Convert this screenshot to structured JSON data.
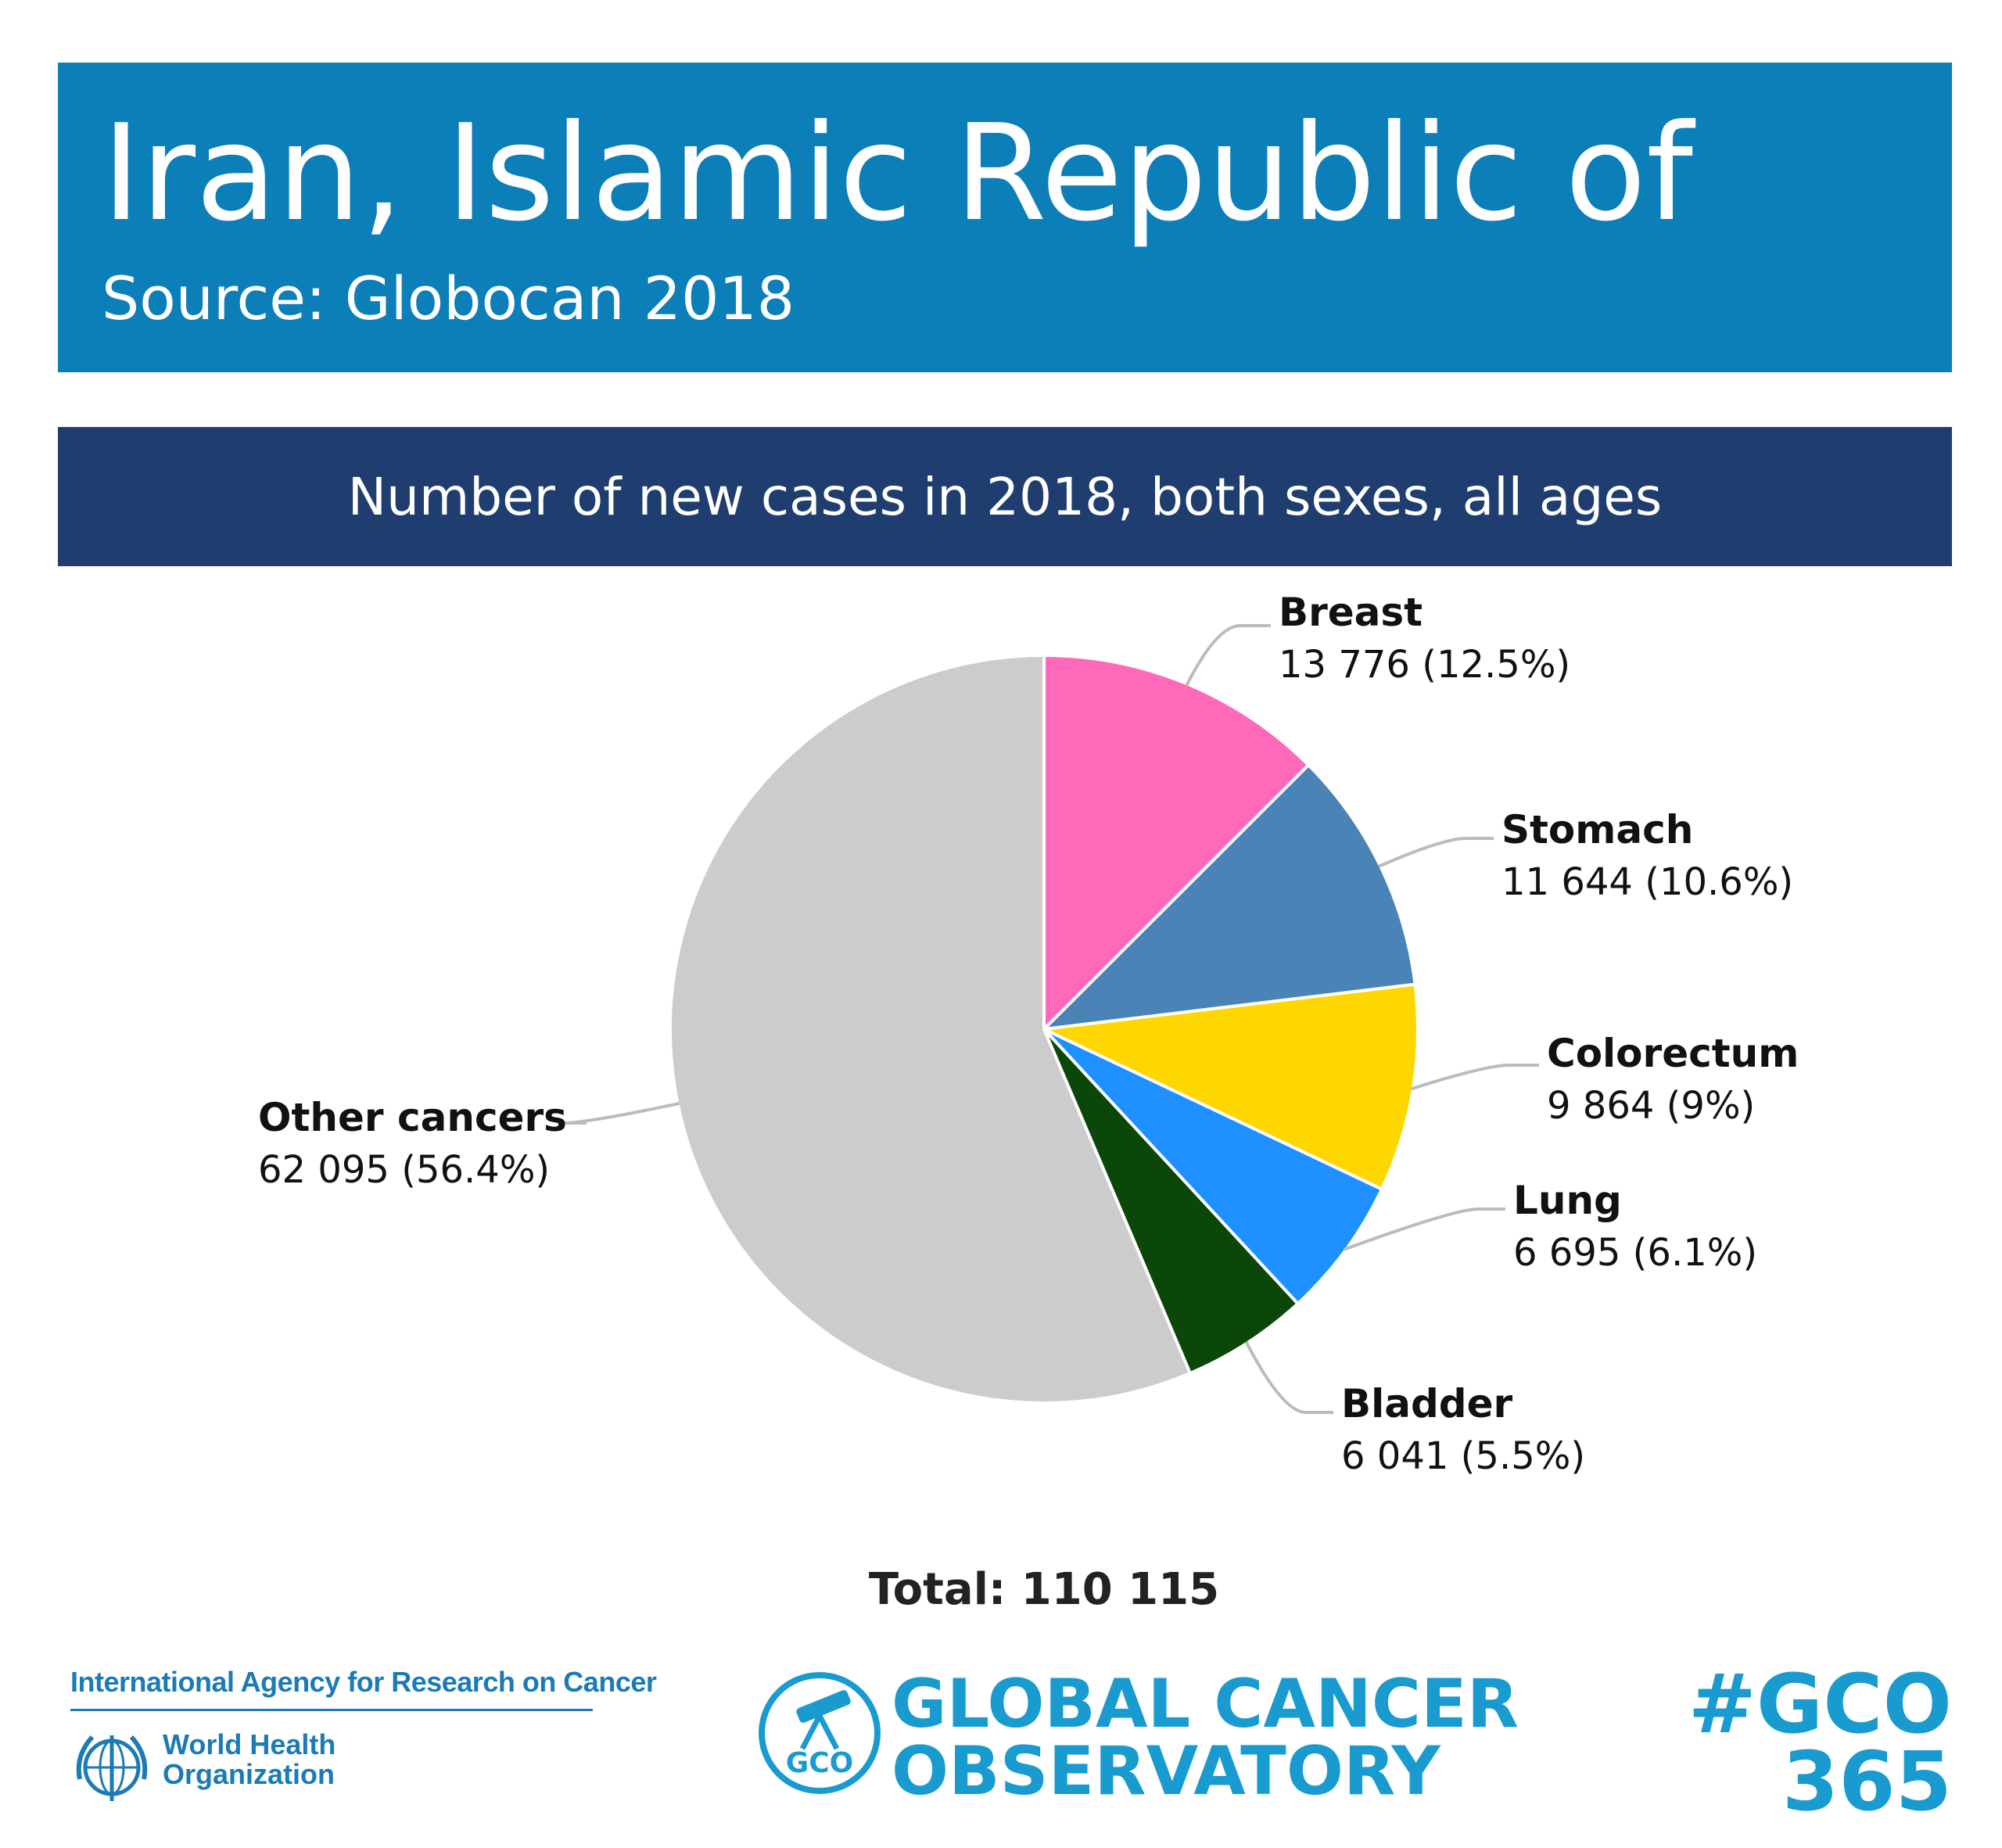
{
  "header": {
    "title": "Iran, Islamic Republic of",
    "source": "Source: Globocan 2018"
  },
  "subtitle": "Number of new cases in 2018, both sexes, all ages",
  "chart_data": {
    "type": "pie",
    "title": "Number of new cases in 2018, both sexes, all ages",
    "slices": [
      {
        "name": "Breast",
        "value": 13776,
        "value_label": "13 776",
        "percent": 12.5,
        "percent_label": "12.5%",
        "color": "#ff69b9"
      },
      {
        "name": "Stomach",
        "value": 11644,
        "value_label": "11 644",
        "percent": 10.6,
        "percent_label": "10.6%",
        "color": "#4a83b5"
      },
      {
        "name": "Colorectum",
        "value": 9864,
        "value_label": "9 864",
        "percent": 9,
        "percent_label": "9%",
        "color": "#ffd700"
      },
      {
        "name": "Lung",
        "value": 6695,
        "value_label": "6 695",
        "percent": 6.1,
        "percent_label": "6.1%",
        "color": "#1f90ff"
      },
      {
        "name": "Bladder",
        "value": 6041,
        "value_label": "6 041",
        "percent": 5.5,
        "percent_label": "5.5%",
        "color": "#0b4709"
      },
      {
        "name": "Other cancers",
        "value": 62095,
        "value_label": "62 095",
        "percent": 56.4,
        "percent_label": "56.4%",
        "color": "#cccccc"
      }
    ],
    "total_label": "Total: 110 115"
  },
  "footer": {
    "iarc": "International Agency for Research on Cancer",
    "who_line1": "World Health",
    "who_line2": "Organization",
    "gco_badge": "GCO",
    "gco_line1": "GLOBAL CANCER",
    "gco_line2": "OBSERVATORY",
    "hashtag_line1": "#GCO",
    "hashtag_line2": "365"
  },
  "colors": {
    "header_bg": "#0d7fb8",
    "subtitle_bg": "#1f3d6e",
    "brand_blue": "#1a9bd0"
  }
}
